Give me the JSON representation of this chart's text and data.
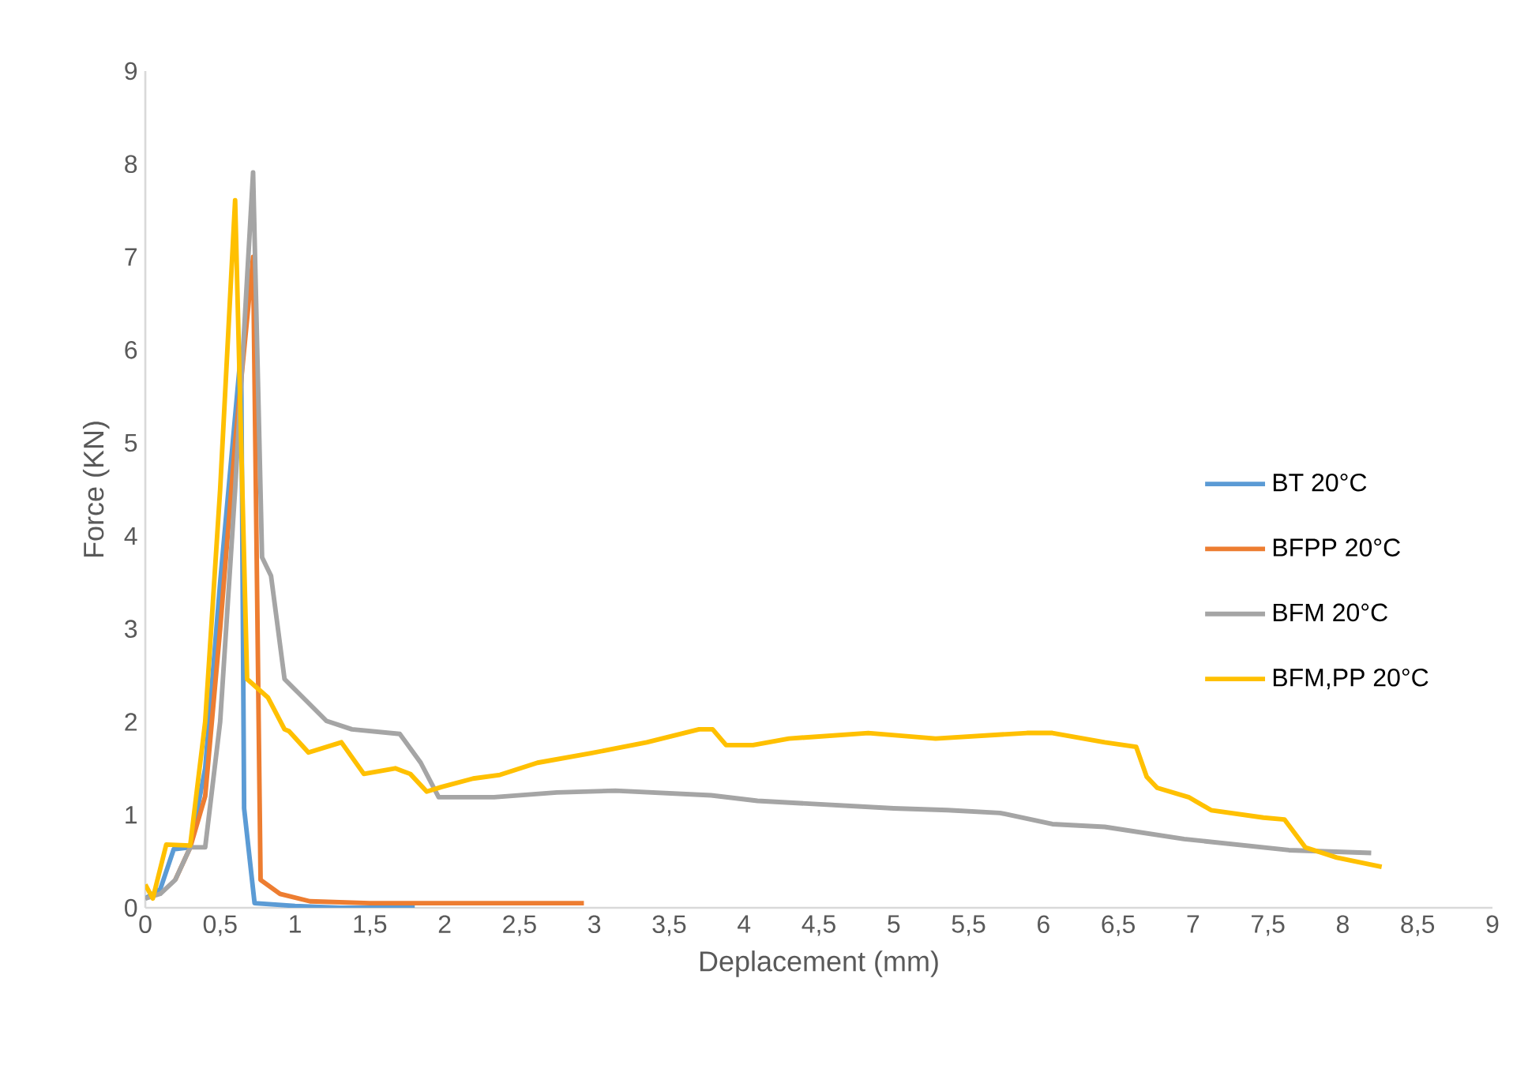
{
  "chart_data": {
    "type": "line",
    "xlabel": "Deplacement (mm)",
    "ylabel": "Force (KN)",
    "xlim": [
      0,
      9
    ],
    "ylim": [
      0,
      9
    ],
    "xticks": [
      0,
      {
        "value": 0.5,
        "label": "0,5"
      },
      1,
      {
        "value": 1.5,
        "label": "1,5"
      },
      2,
      {
        "value": 2.5,
        "label": "2,5"
      },
      3,
      {
        "value": 3.5,
        "label": "3,5"
      },
      4,
      {
        "value": 4.5,
        "label": "4,5"
      },
      5,
      {
        "value": 5.5,
        "label": "5,5"
      },
      6,
      {
        "value": 6.5,
        "label": "6,5"
      },
      7,
      {
        "value": 7.5,
        "label": "7,5"
      },
      8,
      {
        "value": 8.5,
        "label": "8,5"
      },
      9
    ],
    "yticks": [
      0,
      1,
      2,
      3,
      4,
      5,
      6,
      7,
      8,
      9
    ],
    "legend": "right",
    "line_style": "solid",
    "series": [
      {
        "name": "BT 20°C",
        "color": "#5b9bd5",
        "x": [
          0,
          0.1,
          0.19,
          0.3,
          0.4,
          0.5,
          0.64,
          0.66,
          0.73,
          1.0,
          1.3,
          1.8
        ],
        "values": [
          0.1,
          0.2,
          0.63,
          0.65,
          1.5,
          3.5,
          6.0,
          1.07,
          0.05,
          0.02,
          0.0,
          0.0
        ]
      },
      {
        "name": "BFPP 20°C",
        "color": "#ed7d31",
        "x": [
          0.2,
          0.3,
          0.4,
          0.5,
          0.6,
          0.72,
          0.77,
          0.9,
          1.1,
          1.5,
          2.0,
          2.93
        ],
        "values": [
          0.3,
          0.65,
          1.2,
          3.0,
          5.0,
          7.0,
          0.3,
          0.15,
          0.07,
          0.05,
          0.05,
          0.05
        ]
      },
      {
        "name": "BFM 20°C",
        "color": "#a5a5a5",
        "x": [
          0,
          0.1,
          0.2,
          0.3,
          0.4,
          0.5,
          0.6,
          0.72,
          0.78,
          0.84,
          0.93,
          1.21,
          1.38,
          1.7,
          1.84,
          1.96,
          2.33,
          2.75,
          3.14,
          3.78,
          4.09,
          5.0,
          5.36,
          5.71,
          6.06,
          6.41,
          6.94,
          7.64,
          8.19
        ],
        "values": [
          0.1,
          0.15,
          0.3,
          0.65,
          0.65,
          2.0,
          4.5,
          7.91,
          3.77,
          3.57,
          2.46,
          2.01,
          1.92,
          1.87,
          1.56,
          1.19,
          1.19,
          1.24,
          1.26,
          1.21,
          1.15,
          1.07,
          1.05,
          1.02,
          0.9,
          0.87,
          0.74,
          0.62,
          0.59
        ]
      },
      {
        "name": "BFM,PP 20°C",
        "color": "#ffc000",
        "x": [
          0,
          0.05,
          0.14,
          0.3,
          0.4,
          0.5,
          0.6,
          0.68,
          0.82,
          0.93,
          0.96,
          1.09,
          1.31,
          1.46,
          1.67,
          1.77,
          1.88,
          1.98,
          2.19,
          2.37,
          2.62,
          2.97,
          3.35,
          3.7,
          3.79,
          3.88,
          4.06,
          4.3,
          4.83,
          5.28,
          5.89,
          6.06,
          6.41,
          6.62,
          6.69,
          6.76,
          6.97,
          7.12,
          7.47,
          7.61,
          7.75,
          7.96,
          8.26
        ],
        "values": [
          0.25,
          0.1,
          0.68,
          0.67,
          2.0,
          4.5,
          7.61,
          2.46,
          2.26,
          1.92,
          1.9,
          1.67,
          1.78,
          1.44,
          1.5,
          1.44,
          1.25,
          1.3,
          1.39,
          1.43,
          1.56,
          1.66,
          1.78,
          1.92,
          1.92,
          1.75,
          1.75,
          1.82,
          1.88,
          1.82,
          1.88,
          1.88,
          1.78,
          1.73,
          1.41,
          1.29,
          1.19,
          1.05,
          0.97,
          0.95,
          0.65,
          0.54,
          0.44
        ]
      }
    ]
  }
}
